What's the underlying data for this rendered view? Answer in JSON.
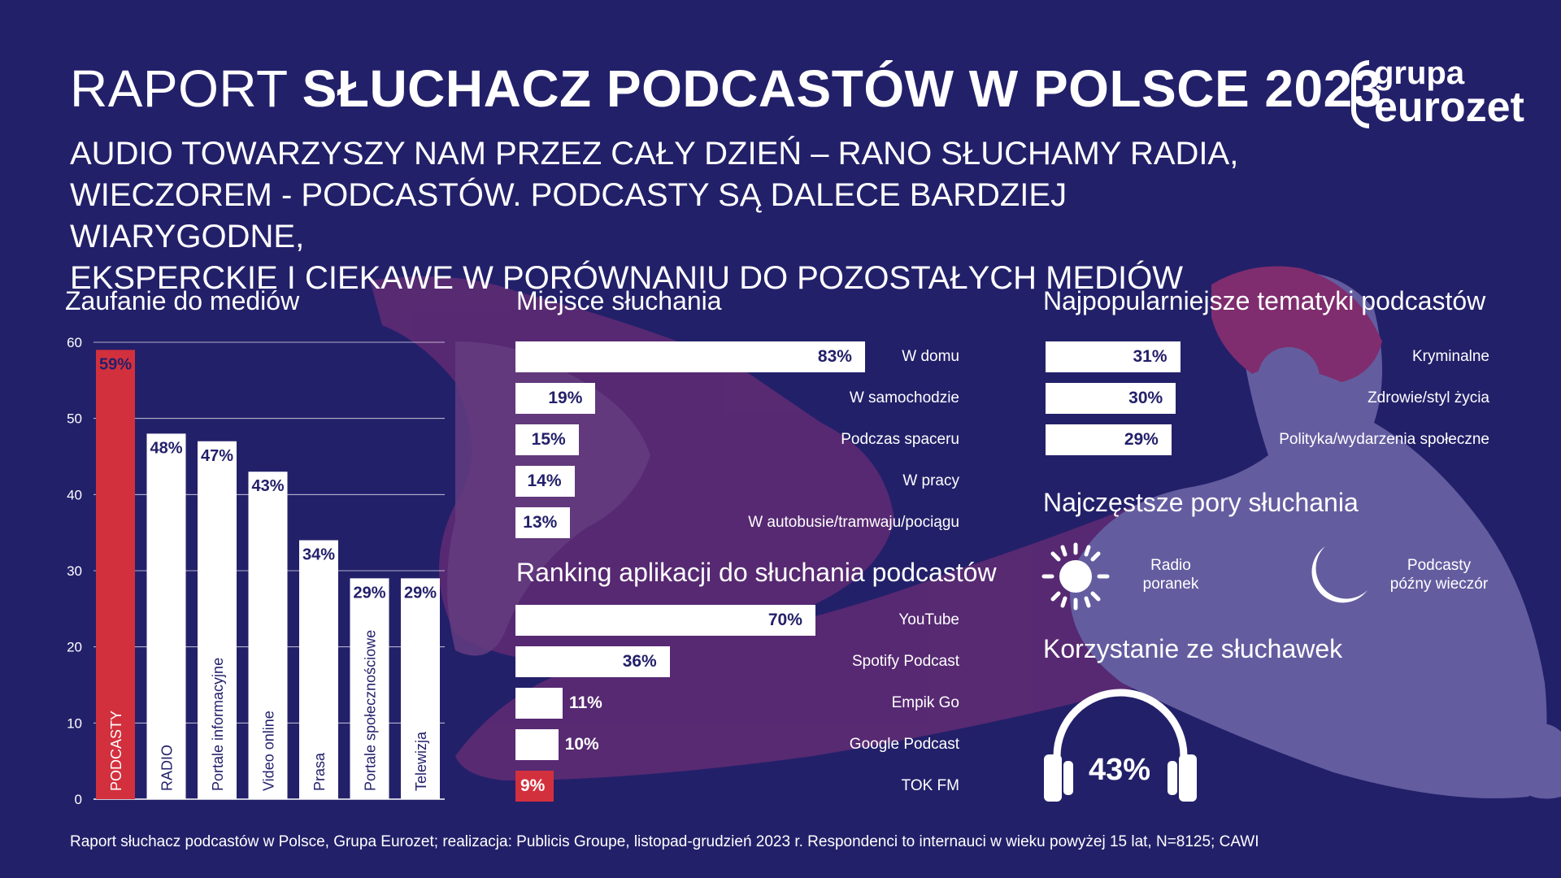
{
  "header": {
    "title_regular": "RAPORT",
    "title_bold": "SŁUCHACZ PODCASTÓW W POLSCE 2023",
    "subtitle_lines": [
      "AUDIO TOWARZYSZY NAM PRZEZ CAŁY DZIEŃ – RANO SŁUCHAMY RADIA,",
      "WIECZOREM - PODCASTÓW. PODCASTY SĄ DALECE BARDZIEJ WIARYGODNE,",
      "EKSPERCKIE I CIEKAWE W PORÓWNANIU DO POZOSTAŁYCH MEDIÓW"
    ]
  },
  "logo": {
    "line1": "grupa",
    "line2": "eurozet"
  },
  "colors": {
    "background": "#23206a",
    "bar": "#ffffff",
    "accent": "#d3303e",
    "value_text": "#23206a"
  },
  "times": {
    "title": "Najczęstsze pory słuchania",
    "items": [
      {
        "icon": "sun-icon",
        "line1": "Radio",
        "line2": "poranek"
      },
      {
        "icon": "moon-icon",
        "line1": "Podcasty",
        "line2": "późny wieczór"
      }
    ]
  },
  "headphones": {
    "title": "Korzystanie ze słuchawek",
    "value": 43,
    "label": "43%",
    "icon": "headphones-icon"
  },
  "footer": "Raport słuchacz podcastów w Polsce, Grupa Eurozet; realizacja: Publicis Groupe, listopad-grudzień 2023 r. Respondenci to internauci w wieku powyżej 15 lat, N=8125; CAWI",
  "chart_data": [
    {
      "type": "bar",
      "title": "Zaufanie do mediów",
      "categories": [
        "PODCASTY",
        "RADIO",
        "Portale informacyjne",
        "Video online",
        "Prasa",
        "Portale społecznościowe",
        "Telewizja"
      ],
      "values": [
        59,
        48,
        47,
        43,
        34,
        29,
        29
      ],
      "value_labels": [
        "59%",
        "48%",
        "47%",
        "43%",
        "34%",
        "29%",
        "29%"
      ],
      "highlight": [
        true,
        false,
        false,
        false,
        false,
        false,
        false
      ],
      "ylim": [
        0,
        60
      ],
      "yticks": [
        0,
        10,
        20,
        30,
        40,
        50,
        60
      ],
      "grid": true
    },
    {
      "type": "bar",
      "orientation": "horizontal",
      "title": "Miejsce słuchania",
      "categories": [
        "W domu",
        "W samochodzie",
        "Podczas spaceru",
        "W pracy",
        "W autobusie/tramwaju/pociągu"
      ],
      "values": [
        83,
        19,
        15,
        14,
        13
      ],
      "value_labels": [
        "83%",
        "19%",
        "15%",
        "14%",
        "13%"
      ]
    },
    {
      "type": "bar",
      "orientation": "horizontal",
      "title": "Ranking aplikacji do słuchania podcastów",
      "categories": [
        "YouTube",
        "Spotify Podcast",
        "Empik Go",
        "Google Podcast",
        "TOK FM"
      ],
      "values": [
        70,
        36,
        11,
        10,
        9
      ],
      "value_labels": [
        "70%",
        "36%",
        "11%",
        "10%",
        "9%"
      ],
      "highlight": [
        false,
        false,
        false,
        false,
        true
      ]
    },
    {
      "type": "bar",
      "orientation": "horizontal",
      "title": "Najpopularniejsze tematyki podcastów",
      "categories": [
        "Kryminalne",
        "Zdrowie/styl życia",
        "Polityka/wydarzenia społeczne"
      ],
      "values": [
        31,
        30,
        29
      ],
      "value_labels": [
        "31%",
        "30%",
        "29%"
      ]
    }
  ]
}
